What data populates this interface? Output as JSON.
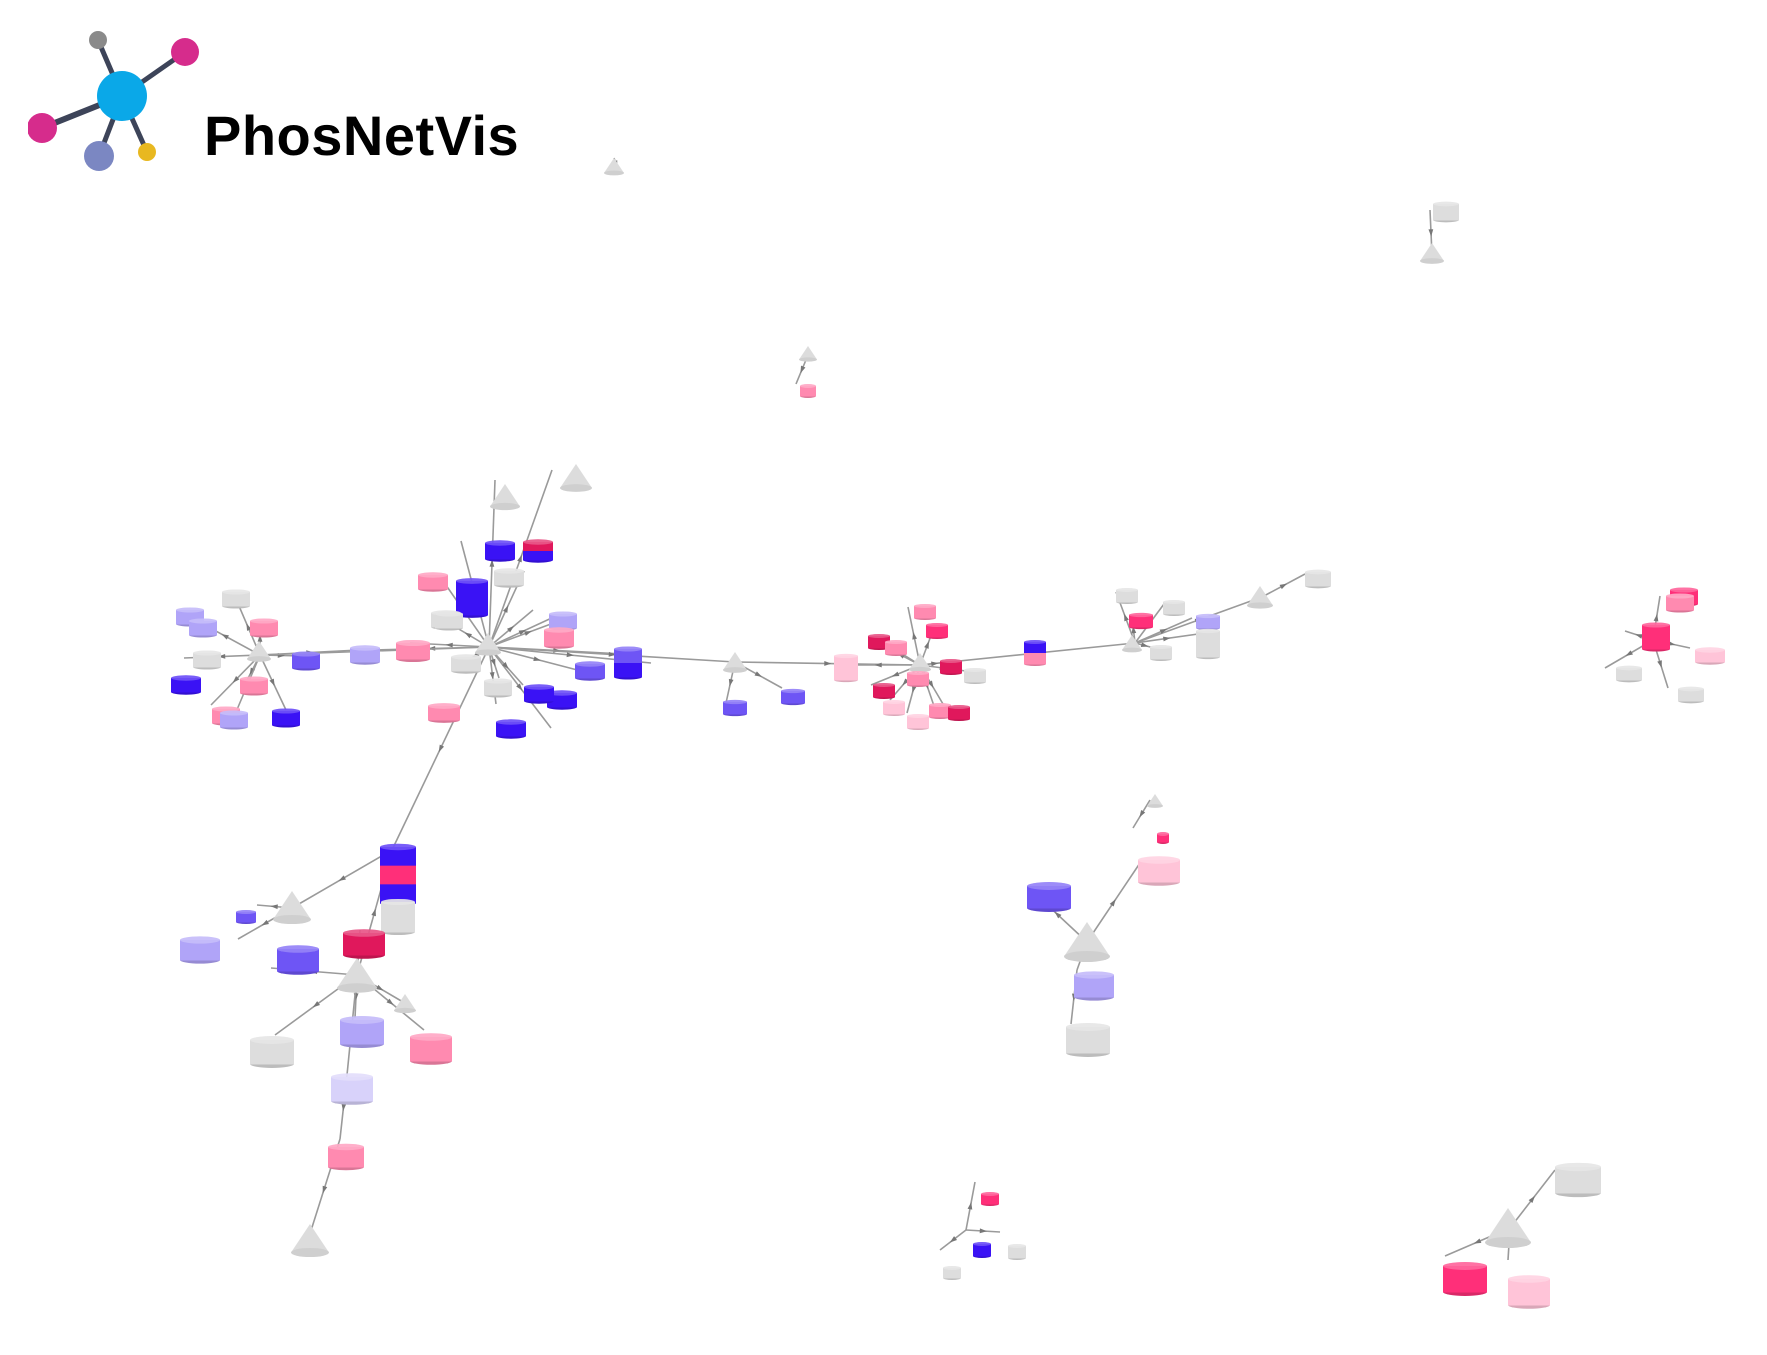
{
  "app": {
    "title": "PhosNetVis"
  },
  "colors": {
    "background": "#ffffff",
    "edge": "#999999",
    "neutral_node": "#dddddd",
    "logo_center": "#0aa8e8",
    "logo_magenta": "#d62c8c",
    "logo_gray": "#8a8a8a",
    "logo_slate": "#7b87c2",
    "logo_yellow": "#e8b820",
    "logo_edge": "#3d4459"
  },
  "legend_icons": [
    "cylinder-node-protein",
    "triangle-node-kinase"
  ]
}
